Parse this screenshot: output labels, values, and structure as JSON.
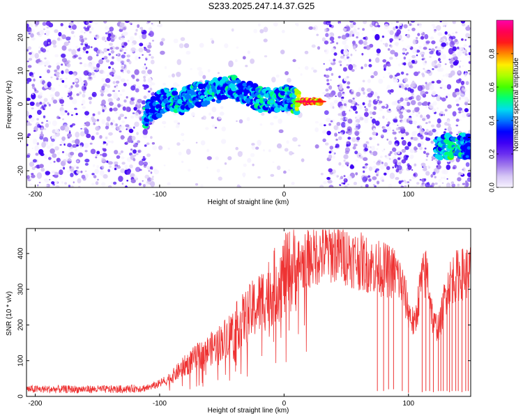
{
  "figure": {
    "title": "S233.2025.247.14.37.G25"
  },
  "chart_data": [
    {
      "type": "heatmap",
      "name": "spectrogram",
      "xlabel": "Height of straight line (km)",
      "ylabel": "Frequency (Hz)",
      "xlim": [
        -207,
        150
      ],
      "ylim": [
        -25,
        25
      ],
      "xticks": [
        -200,
        -100,
        0,
        100
      ],
      "yticks": [
        -20,
        -10,
        0,
        10,
        20
      ],
      "colorbar": {
        "label": "Normalized spectral amplitude",
        "range": [
          0,
          1
        ],
        "ticks": [
          "0.0",
          "0.2",
          "0.4",
          "0.6",
          "0.8"
        ],
        "tick_values": [
          0.0,
          0.2,
          0.4,
          0.6,
          0.8
        ],
        "colors": [
          "#f6f2ff",
          "#d6c6f5",
          "#9f78ec",
          "#6b2ff0",
          "#3d00f5",
          "#0000ff",
          "#0077ff",
          "#00ddee",
          "#00ff77",
          "#44ff00",
          "#aaff00",
          "#ffee00",
          "#ff8800",
          "#ff1a1a",
          "#ff0055",
          "#ff00aa"
        ]
      },
      "noise_regions": [
        {
          "x": [
            -207,
            -105
          ],
          "y": [
            -25,
            25
          ],
          "density": "high"
        },
        {
          "x": [
            -105,
            32
          ],
          "y": [
            -25,
            25
          ],
          "density": "sparse"
        },
        {
          "x": [
            32,
            118
          ],
          "y": [
            -25,
            25
          ],
          "density": "high"
        },
        {
          "x": [
            118,
            150
          ],
          "y": [
            -25,
            25
          ],
          "density": "high"
        }
      ],
      "signal_track": [
        {
          "x": -112,
          "y": -3.5,
          "amp": 0.55
        },
        {
          "x": -105,
          "y": -1.5,
          "amp": 0.45
        },
        {
          "x": -98,
          "y": 1.0,
          "amp": 0.5
        },
        {
          "x": -90,
          "y": 1.5,
          "amp": 0.55
        },
        {
          "x": -82,
          "y": 0.5,
          "amp": 0.5
        },
        {
          "x": -75,
          "y": 2.0,
          "amp": 0.55
        },
        {
          "x": -68,
          "y": 3.0,
          "amp": 0.5
        },
        {
          "x": -60,
          "y": 3.5,
          "amp": 0.55
        },
        {
          "x": -52,
          "y": 4.0,
          "amp": 0.5
        },
        {
          "x": -44,
          "y": 5.0,
          "amp": 0.55
        },
        {
          "x": -36,
          "y": 4.5,
          "amp": 0.5
        },
        {
          "x": -28,
          "y": 3.0,
          "amp": 0.45
        },
        {
          "x": -20,
          "y": 1.5,
          "amp": 0.55
        },
        {
          "x": -12,
          "y": 1.0,
          "amp": 0.55
        },
        {
          "x": -5,
          "y": 1.0,
          "amp": 0.55
        },
        {
          "x": 2,
          "y": 2.0,
          "amp": 0.5
        },
        {
          "x": 8,
          "y": 1.0,
          "amp": 0.6
        },
        {
          "x": 14,
          "y": 0.8,
          "amp": 0.9
        },
        {
          "x": 22,
          "y": 0.8,
          "amp": 0.95
        },
        {
          "x": 29,
          "y": 0.8,
          "amp": 0.85
        },
        {
          "x": 122,
          "y": -12.5,
          "amp": 0.5
        },
        {
          "x": 132,
          "y": -12.8,
          "amp": 0.6
        },
        {
          "x": 141,
          "y": -12.5,
          "amp": 0.55
        },
        {
          "x": 148,
          "y": -12.7,
          "amp": 0.45
        }
      ]
    },
    {
      "type": "line",
      "name": "snr",
      "xlabel": "Height of straight line (km)",
      "ylabel": "SNR (10 * v/v)",
      "xlim": [
        -207,
        150
      ],
      "ylim": [
        0,
        470
      ],
      "xticks": [
        -200,
        -100,
        0,
        100
      ],
      "yticks": [
        0,
        100,
        200,
        300,
        400
      ],
      "color": "#ee3333",
      "series": [
        {
          "name": "SNR",
          "x": [
            -207,
            -190,
            -170,
            -150,
            -130,
            -110,
            -100,
            -90,
            -80,
            -70,
            -60,
            -50,
            -40,
            -30,
            -20,
            -10,
            0,
            10,
            20,
            30,
            40,
            50,
            60,
            70,
            80,
            90,
            95,
            100,
            105,
            110,
            115,
            120,
            125,
            130,
            135,
            140,
            145,
            150
          ],
          "y": [
            20,
            20,
            20,
            20,
            20,
            24,
            35,
            55,
            85,
            110,
            130,
            155,
            190,
            225,
            260,
            300,
            335,
            365,
            385,
            400,
            405,
            395,
            380,
            365,
            355,
            345,
            310,
            240,
            195,
            320,
            350,
            200,
            195,
            290,
            330,
            340,
            345,
            350
          ]
        },
        {
          "name": "dropouts",
          "x": [
            75,
            80,
            84,
            88,
            95,
            100,
            111,
            114,
            117,
            120,
            124,
            126,
            128,
            131,
            133,
            135,
            138,
            140,
            143,
            146,
            148
          ],
          "y": [
            15,
            15,
            20,
            20,
            15,
            10,
            12,
            15,
            15,
            12,
            15,
            15,
            15,
            15,
            12,
            15,
            15,
            15,
            12,
            15,
            15
          ]
        }
      ]
    }
  ]
}
